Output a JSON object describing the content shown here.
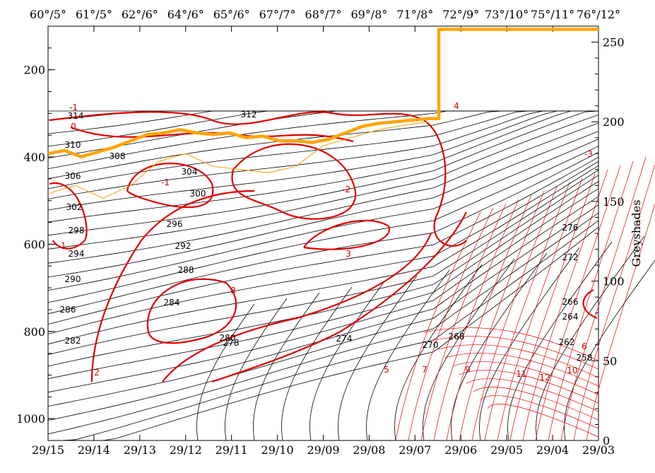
{
  "chart_data": {
    "type": "contour",
    "top_axis": {
      "labels": [
        "60°/5°",
        "61°/5°",
        "62°/6°",
        "64°/6°",
        "65°/6°",
        "67°/7°",
        "68°/7°",
        "69°/8°",
        "71°/8°",
        "72°/9°",
        "73°/10°",
        "75°/11°",
        "76°/12°"
      ]
    },
    "bottom_axis": {
      "labels": [
        "29/15",
        "29/14",
        "29/13",
        "29/12",
        "29/11",
        "29/10",
        "29/09",
        "29/08",
        "29/07",
        "29/06",
        "29/05",
        "29/04",
        "29/03"
      ]
    },
    "left_axis": {
      "ticks": [
        200,
        400,
        600,
        800,
        1000
      ],
      "range": [
        100,
        1050
      ],
      "inverted": true
    },
    "right_axis": {
      "label": "Greyshades",
      "ticks": [
        0,
        50,
        100,
        150,
        200,
        250
      ],
      "range": [
        0,
        260
      ]
    },
    "black_contour_labels": [
      "314",
      "312",
      "310",
      "308",
      "306",
      "304",
      "302",
      "300",
      "298",
      "296",
      "294",
      "292",
      "290",
      "288",
      "286",
      "284",
      "282",
      "280",
      "278",
      "276",
      "274",
      "272",
      "270",
      "268",
      "266",
      "264",
      "262",
      "258"
    ],
    "red_contour_labels": [
      "-1",
      "0",
      "1",
      "2",
      "3",
      "4",
      "5",
      "6",
      "7",
      "8",
      "9",
      "10",
      "11",
      "12",
      "-1",
      "-2",
      "-3"
    ],
    "greyshade_series_thick": {
      "name": "",
      "x_frac": [
        0.0,
        0.03,
        0.06,
        0.09,
        0.12,
        0.15,
        0.18,
        0.21,
        0.24,
        0.27,
        0.3,
        0.33,
        0.36,
        0.39,
        0.42,
        0.45,
        0.48,
        0.51,
        0.54,
        0.57,
        0.6,
        0.63,
        0.66,
        0.69,
        0.71,
        0.71,
        1.0
      ],
      "y": [
        180,
        182,
        178,
        181,
        184,
        188,
        192,
        193,
        195,
        193,
        192,
        193,
        190,
        191,
        188,
        188,
        187,
        189,
        193,
        197,
        199,
        200,
        201,
        202,
        202,
        258,
        258
      ]
    },
    "greyshade_series_thin": {
      "name": "",
      "x_frac": [
        0.0,
        0.05,
        0.1,
        0.15,
        0.2,
        0.25,
        0.3,
        0.35,
        0.4,
        0.45,
        0.5,
        0.55,
        0.6,
        0.65,
        0.69
      ],
      "y": [
        155,
        160,
        152,
        160,
        175,
        180,
        172,
        170,
        168,
        172,
        185,
        190,
        195,
        198,
        200
      ]
    }
  }
}
